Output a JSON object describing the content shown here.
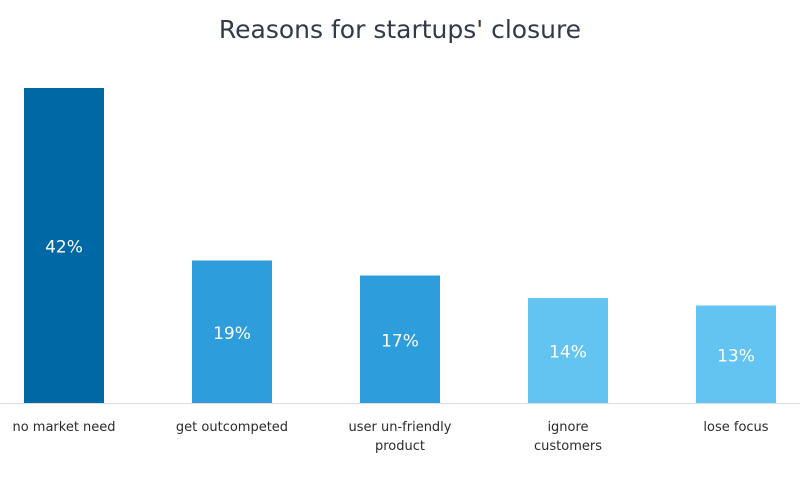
{
  "chart_data": {
    "type": "bar",
    "title": "Reasons for startups' closure",
    "categories": [
      "no market need",
      "get outcompeted",
      "user un-friendly\nproduct",
      "ignore\ncustomers",
      "lose focus"
    ],
    "values": [
      42,
      19,
      17,
      14,
      13
    ],
    "value_labels": [
      "42%",
      "19%",
      "17%",
      "14%",
      "13%"
    ],
    "colors": [
      "#0068a5",
      "#2d9ddc",
      "#2d9ddc",
      "#63c4f1",
      "#63c4f1"
    ]
  }
}
